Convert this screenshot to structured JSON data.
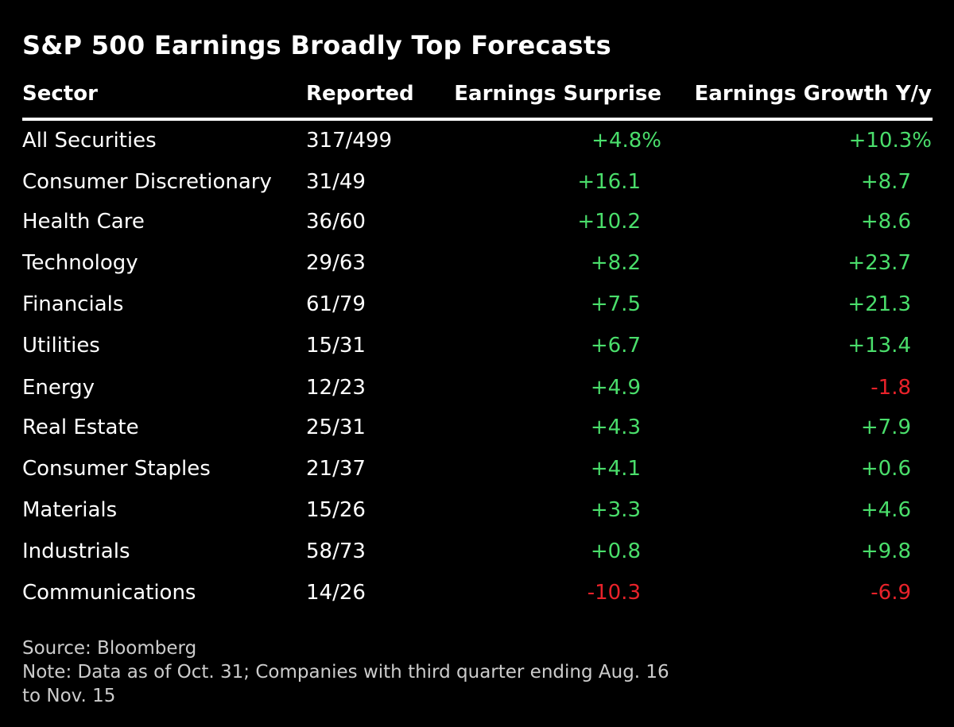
{
  "chart_data": {
    "type": "table",
    "title": "S&P 500 Earnings Broadly Top Forecasts",
    "columns": [
      "Sector",
      "Reported",
      "Earnings Surprise",
      "Earnings Growth Y/y"
    ],
    "rows": [
      {
        "sector": "All Securities",
        "reported": "317/499",
        "surprise": "+4.8%",
        "growth": "+10.3%"
      },
      {
        "sector": "Consumer Discretionary",
        "reported": "31/49",
        "surprise": "+16.1",
        "growth": "+8.7"
      },
      {
        "sector": "Health Care",
        "reported": "36/60",
        "surprise": "+10.2",
        "growth": "+8.6"
      },
      {
        "sector": "Technology",
        "reported": "29/63",
        "surprise": "+8.2",
        "growth": "+23.7"
      },
      {
        "sector": "Financials",
        "reported": "61/79",
        "surprise": "+7.5",
        "growth": "+21.3"
      },
      {
        "sector": "Utilities",
        "reported": "15/31",
        "surprise": "+6.7",
        "growth": "+13.4"
      },
      {
        "sector": "Energy",
        "reported": "12/23",
        "surprise": "+4.9",
        "growth": "-1.8"
      },
      {
        "sector": "Real Estate",
        "reported": "25/31",
        "surprise": "+4.3",
        "growth": "+7.9"
      },
      {
        "sector": "Consumer Staples",
        "reported": "21/37",
        "surprise": "+4.1",
        "growth": "+0.6"
      },
      {
        "sector": "Materials",
        "reported": "15/26",
        "surprise": "+3.3",
        "growth": "+4.6"
      },
      {
        "sector": "Industrials",
        "reported": "58/73",
        "surprise": "+0.8",
        "growth": "+9.8"
      },
      {
        "sector": "Communications",
        "reported": "14/26",
        "surprise": "-10.3",
        "growth": "-6.9"
      }
    ]
  },
  "footer": {
    "source": "Source: Bloomberg",
    "note_line1": "Note: Data as of Oct. 31; Companies with third quarter ending Aug. 16",
    "note_line2": "to Nov. 15"
  },
  "colors": {
    "background": "#000000",
    "text": "#ffffff",
    "positive": "#4ade6b",
    "negative": "#e8222a",
    "footer_text": "#cccccc"
  }
}
